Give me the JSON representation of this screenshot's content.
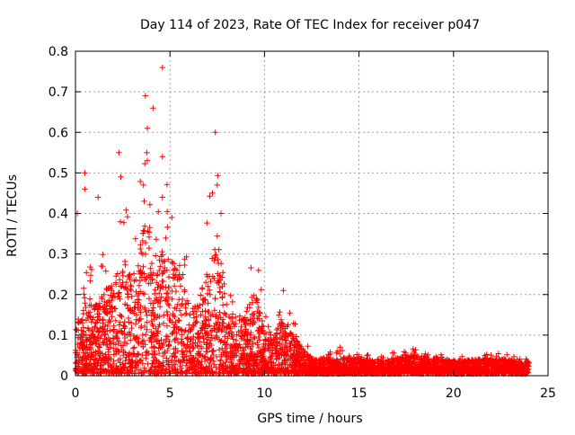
{
  "chart_data": {
    "type": "scatter",
    "title": "Day 114 of 2023, Rate Of TEC Index for receiver p047",
    "xlabel": "GPS time / hours",
    "ylabel": "ROTI / TECUs",
    "xlim": [
      0,
      25
    ],
    "ylim": [
      0,
      0.8
    ],
    "xticks": [
      "0",
      "5",
      "10",
      "15",
      "20",
      "25"
    ],
    "yticks": [
      "0",
      "0.1",
      "0.2",
      "0.3",
      "0.4",
      "0.5",
      "0.6",
      "0.7",
      "0.8"
    ],
    "grid": true,
    "marker": "+",
    "color": "#ff0000",
    "notable_points": [
      {
        "x": 4.6,
        "y": 0.76
      },
      {
        "x": 3.7,
        "y": 0.69
      },
      {
        "x": 4.1,
        "y": 0.66
      },
      {
        "x": 3.8,
        "y": 0.61
      },
      {
        "x": 7.4,
        "y": 0.6
      },
      {
        "x": 2.3,
        "y": 0.55
      },
      {
        "x": 4.6,
        "y": 0.54
      },
      {
        "x": 3.8,
        "y": 0.53
      },
      {
        "x": 0.5,
        "y": 0.5
      },
      {
        "x": 2.4,
        "y": 0.49
      },
      {
        "x": 0.5,
        "y": 0.46
      },
      {
        "x": 7.5,
        "y": 0.47
      },
      {
        "x": 3.6,
        "y": 0.47
      },
      {
        "x": 1.2,
        "y": 0.44
      },
      {
        "x": 4.6,
        "y": 0.44
      },
      {
        "x": 0.1,
        "y": 0.4
      },
      {
        "x": 7.7,
        "y": 0.4
      },
      {
        "x": 5.1,
        "y": 0.39
      },
      {
        "x": 11.0,
        "y": 0.21
      },
      {
        "x": 14.0,
        "y": 0.07
      },
      {
        "x": 17.9,
        "y": 0.06
      }
    ],
    "envelope": [
      {
        "x": 0.0,
        "y": 0.1
      },
      {
        "x": 0.5,
        "y": 0.2
      },
      {
        "x": 1.0,
        "y": 0.16
      },
      {
        "x": 1.5,
        "y": 0.19
      },
      {
        "x": 2.0,
        "y": 0.23
      },
      {
        "x": 2.5,
        "y": 0.3
      },
      {
        "x": 3.0,
        "y": 0.22
      },
      {
        "x": 3.5,
        "y": 0.32
      },
      {
        "x": 3.8,
        "y": 0.38
      },
      {
        "x": 4.2,
        "y": 0.2
      },
      {
        "x": 4.6,
        "y": 0.32
      },
      {
        "x": 5.0,
        "y": 0.28
      },
      {
        "x": 5.5,
        "y": 0.24
      },
      {
        "x": 6.0,
        "y": 0.17
      },
      {
        "x": 6.5,
        "y": 0.16
      },
      {
        "x": 7.0,
        "y": 0.27
      },
      {
        "x": 7.5,
        "y": 0.33
      },
      {
        "x": 8.0,
        "y": 0.18
      },
      {
        "x": 8.5,
        "y": 0.12
      },
      {
        "x": 9.0,
        "y": 0.14
      },
      {
        "x": 9.5,
        "y": 0.2
      },
      {
        "x": 10.0,
        "y": 0.1
      },
      {
        "x": 10.5,
        "y": 0.09
      },
      {
        "x": 11.0,
        "y": 0.14
      },
      {
        "x": 11.5,
        "y": 0.09
      },
      {
        "x": 12.0,
        "y": 0.06
      },
      {
        "x": 12.5,
        "y": 0.035
      },
      {
        "x": 14.0,
        "y": 0.04
      },
      {
        "x": 16.0,
        "y": 0.03
      },
      {
        "x": 18.0,
        "y": 0.045
      },
      {
        "x": 20.0,
        "y": 0.03
      },
      {
        "x": 22.0,
        "y": 0.035
      },
      {
        "x": 24.0,
        "y": 0.03
      }
    ]
  }
}
